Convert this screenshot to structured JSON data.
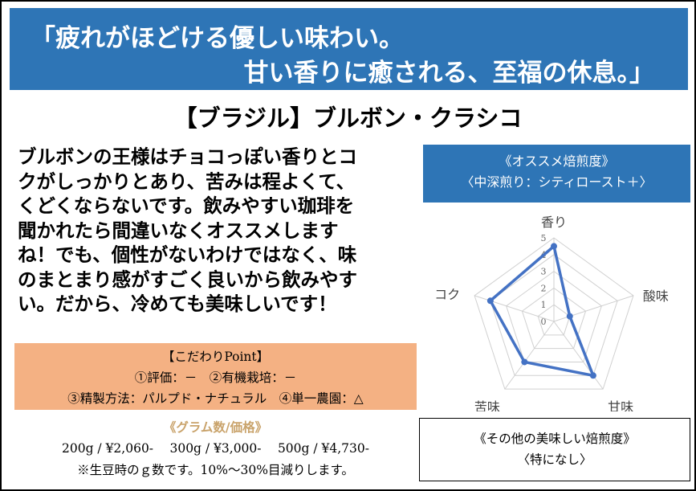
{
  "header": {
    "lines": [
      "「疲れがほどける優しい味わい。",
      "甘い香りに癒される、至福の休息。」"
    ]
  },
  "title": "【ブラジル】ブルボン・クラシコ",
  "description": {
    "lines": [
      "ブルボンの王様はチョコっぽい香りとコ",
      "クがしっかりとあり、苦みは程よくて、",
      "くどくならないです。飲みやすい珈琲を",
      "聞かれたら間違いなくオススメします",
      "ね！でも、個性がないわけではなく、味",
      "のまとまり感がすごく良いから飲みやす",
      "い。だから、冷めても美味しいです！"
    ]
  },
  "roast": {
    "title": "《オススメ焙煎度》",
    "value": "〈中深煎り：シティロースト＋〉"
  },
  "chart_data": {
    "type": "radar",
    "categories": [
      "香り",
      "酸味",
      "甘味",
      "苦味",
      "コク"
    ],
    "values": [
      4.5,
      1,
      4,
      3,
      4
    ],
    "color": "#4472c4",
    "ylim": [
      0,
      5
    ],
    "yticks": [
      0,
      1,
      2,
      3,
      4,
      5
    ],
    "grid": true
  },
  "points": {
    "title": "【こだわりPoint】",
    "lines": [
      "①評価：－　②有機栽培：－",
      "③精製方法：パルプド・ナチュラル　④単一農園：△"
    ]
  },
  "price": {
    "title": "《グラム数/価格》",
    "line": "200g / ¥2,060-　 300g / ¥3,000-　 500g / ¥4,730-",
    "note": "※生豆時のｇ数です。10%～30%目減りします。"
  },
  "other": {
    "title": "《その他の美味しい焙煎度》",
    "value": "〈特になし〉"
  }
}
